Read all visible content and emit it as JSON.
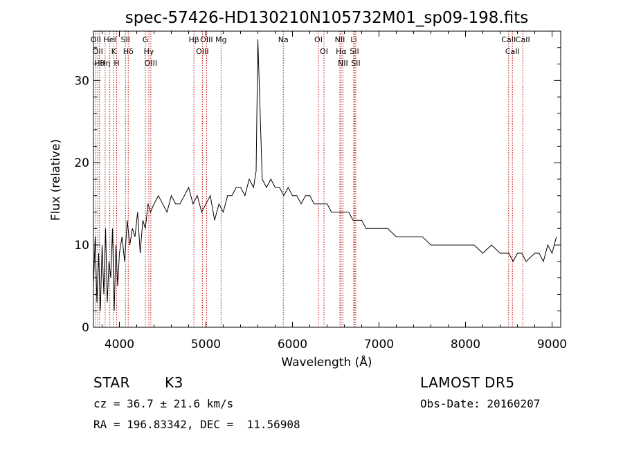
{
  "chart_data": {
    "type": "line",
    "title": "spec-57426-HD130210N105732M01_sp09-198.fits",
    "xlabel": "Wavelength (Å)",
    "ylabel": "Flux (relative)",
    "xlim": [
      3700,
      9100
    ],
    "ylim": [
      0,
      36
    ],
    "x_ticks": [
      4000,
      5000,
      6000,
      7000,
      8000,
      9000
    ],
    "y_ticks": [
      0,
      10,
      20,
      30
    ],
    "grid": false,
    "series": [
      {
        "x": [
          3700,
          3720,
          3740,
          3760,
          3780,
          3800,
          3820,
          3840,
          3860,
          3880,
          3900,
          3920,
          3940,
          3960,
          3980,
          4000,
          4030,
          4060,
          4090,
          4120,
          4150,
          4180,
          4210,
          4240,
          4270,
          4300,
          4330,
          4360,
          4400,
          4450,
          4500,
          4550,
          4600,
          4650,
          4700,
          4750,
          4800,
          4850,
          4900,
          4950,
          5000,
          5050,
          5100,
          5150,
          5200,
          5250,
          5300,
          5350,
          5400,
          5450,
          5500,
          5550,
          5580,
          5600,
          5650,
          5700,
          5750,
          5800,
          5850,
          5900,
          5950,
          6000,
          6050,
          6100,
          6150,
          6200,
          6250,
          6300,
          6350,
          6400,
          6450,
          6500,
          6550,
          6600,
          6650,
          6700,
          6750,
          6800,
          6850,
          6900,
          6950,
          7000,
          7100,
          7200,
          7300,
          7400,
          7500,
          7600,
          7700,
          7800,
          7900,
          8000,
          8100,
          8200,
          8300,
          8400,
          8500,
          8550,
          8600,
          8650,
          8700,
          8800,
          8850,
          8900,
          8950,
          9000,
          9050
        ],
        "y": [
          5,
          11,
          3,
          9,
          2,
          10,
          4,
          12,
          3,
          8,
          6,
          12,
          2,
          10,
          5,
          9,
          11,
          8,
          13,
          10,
          12,
          11,
          14,
          9,
          13,
          12,
          15,
          14,
          15,
          16,
          15,
          14,
          16,
          15,
          15,
          16,
          17,
          15,
          16,
          14,
          15,
          16,
          13,
          15,
          14,
          16,
          16,
          17,
          17,
          16,
          18,
          17,
          19,
          35,
          18,
          17,
          18,
          17,
          17,
          16,
          17,
          16,
          16,
          15,
          16,
          16,
          15,
          15,
          15,
          15,
          14,
          14,
          14,
          14,
          14,
          13,
          13,
          13,
          12,
          12,
          12,
          12,
          12,
          11,
          11,
          11,
          11,
          10,
          10,
          10,
          10,
          10,
          10,
          9,
          10,
          9,
          9,
          8,
          9,
          9,
          8,
          9,
          9,
          8,
          10,
          9,
          11
        ],
        "color": "#000000"
      }
    ],
    "line_markers": [
      {
        "wavelength": 3727,
        "label": "OII"
      },
      {
        "wavelength": 3750,
        "label": "OII"
      },
      {
        "wavelength": 3770,
        "label": "Hθ"
      },
      {
        "wavelength": 3835,
        "label": "Hη"
      },
      {
        "wavelength": 3889,
        "label": "HeI"
      },
      {
        "wavelength": 3934,
        "label": "K"
      },
      {
        "wavelength": 3968,
        "label": "H"
      },
      {
        "wavelength": 4070,
        "label": "SII"
      },
      {
        "wavelength": 4102,
        "label": "Hδ"
      },
      {
        "wavelength": 4300,
        "label": "G"
      },
      {
        "wavelength": 4340,
        "label": "Hγ"
      },
      {
        "wavelength": 4363,
        "label": "OIII"
      },
      {
        "wavelength": 4861,
        "label": "Hβ"
      },
      {
        "wavelength": 4959,
        "label": "OIII"
      },
      {
        "wavelength": 5007,
        "label": "OIII"
      },
      {
        "wavelength": 5175,
        "label": "Mg"
      },
      {
        "wavelength": 5894,
        "label": "Na"
      },
      {
        "wavelength": 6300,
        "label": "OI"
      },
      {
        "wavelength": 6364,
        "label": "OI"
      },
      {
        "wavelength": 6548,
        "label": "NII"
      },
      {
        "wavelength": 6563,
        "label": "Hα"
      },
      {
        "wavelength": 6583,
        "label": "NII"
      },
      {
        "wavelength": 6708,
        "label": "Li"
      },
      {
        "wavelength": 6716,
        "label": "SII"
      },
      {
        "wavelength": 6731,
        "label": "SII"
      },
      {
        "wavelength": 8498,
        "label": "CaII"
      },
      {
        "wavelength": 8542,
        "label": "CaII"
      },
      {
        "wavelength": 8662,
        "label": "CaII"
      }
    ]
  },
  "info": {
    "object_class": "STAR",
    "subclass": "K3",
    "survey": "LAMOST DR5",
    "cz": "cz = 36.7 ± 21.6 km/s",
    "obs_date": "Obs-Date: 20160207",
    "coords": "RA = 196.83342, DEC =  11.56908"
  }
}
